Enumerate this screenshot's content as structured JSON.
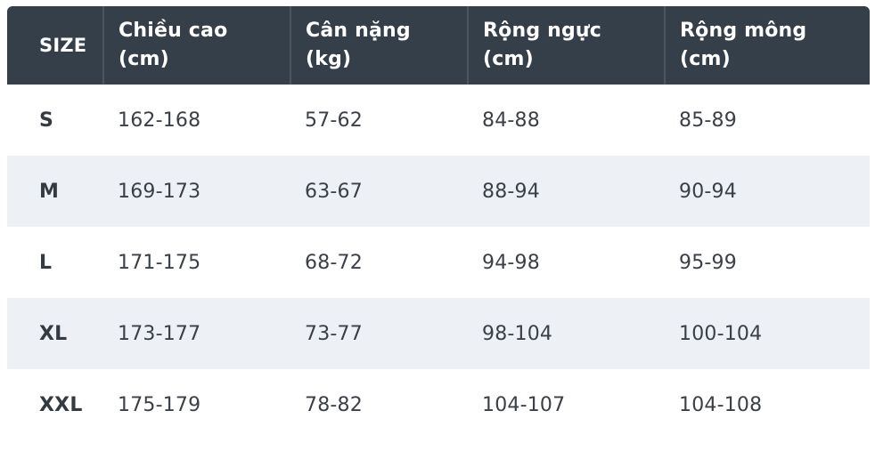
{
  "table": {
    "headers": [
      [
        "SIZE"
      ],
      [
        "Chiều cao",
        "(cm)"
      ],
      [
        "Cân nặng",
        "(kg)"
      ],
      [
        "Rộng ngực",
        "(cm)"
      ],
      [
        "Rộng mông",
        "(cm)"
      ]
    ],
    "rows": [
      [
        "S",
        "162-168",
        "57-62",
        "84-88",
        "85-89"
      ],
      [
        "M",
        "169-173",
        "63-67",
        "88-94",
        "90-94"
      ],
      [
        "L",
        "171-175",
        "68-72",
        "94-98",
        "95-99"
      ],
      [
        "XL",
        "173-177",
        "73-77",
        "98-104",
        "100-104"
      ],
      [
        "XXL",
        "175-179",
        "78-82",
        "104-107",
        "104-108"
      ]
    ]
  },
  "colors": {
    "header_bg": "#353f4a",
    "stripe_bg": "#edf0f5",
    "text": "#3b4048"
  }
}
